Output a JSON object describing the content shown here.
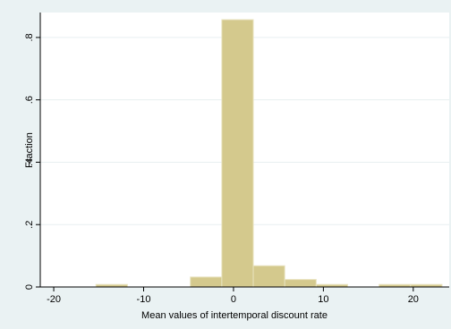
{
  "chart_data": {
    "type": "bar",
    "subtype": "histogram",
    "xlabel": "Mean values of intertemporal discount rate",
    "ylabel": "Fraction",
    "xlim": [
      -21.5,
      24
    ],
    "ylim": [
      0,
      0.88
    ],
    "x_ticks": [
      -20,
      -10,
      0,
      10,
      20
    ],
    "x_tick_labels": [
      "-20",
      "-10",
      "0",
      "10",
      "20"
    ],
    "y_ticks": [
      0,
      0.2,
      0.4,
      0.6,
      0.8
    ],
    "y_tick_labels": [
      "0",
      ".2",
      ".4",
      ".6",
      ".8"
    ],
    "grid": "horizontal",
    "bins": [
      {
        "x0": -15.3,
        "x1": -11.8,
        "value": 0.008
      },
      {
        "x0": -11.8,
        "x1": -8.3,
        "value": 0
      },
      {
        "x0": -8.3,
        "x1": -4.8,
        "value": 0
      },
      {
        "x0": -4.8,
        "x1": -1.3,
        "value": 0.032
      },
      {
        "x0": -1.3,
        "x1": 2.2,
        "value": 0.857
      },
      {
        "x0": 2.2,
        "x1": 5.7,
        "value": 0.068
      },
      {
        "x0": 5.7,
        "x1": 9.2,
        "value": 0.024
      },
      {
        "x0": 9.2,
        "x1": 12.7,
        "value": 0.008
      },
      {
        "x0": 12.7,
        "x1": 16.2,
        "value": 0
      },
      {
        "x0": 16.2,
        "x1": 19.7,
        "value": 0.008
      },
      {
        "x0": 19.7,
        "x1": 23.2,
        "value": 0.008
      }
    ],
    "colors": {
      "bar_fill": "#d4c98d",
      "bar_stroke": "#e9e3c0",
      "plot_bg": "#ffffff",
      "outer_bg": "#eaf2f3",
      "grid": "#e8eff0"
    }
  }
}
